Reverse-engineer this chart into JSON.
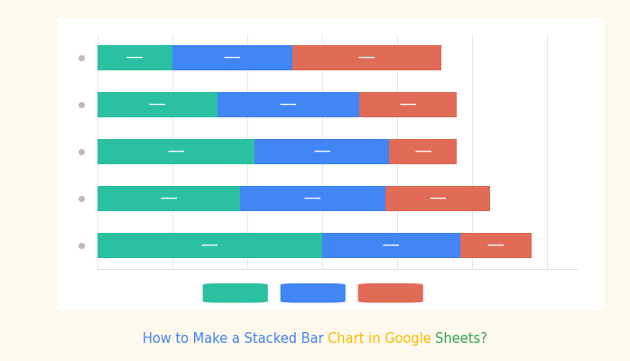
{
  "title_parts": [
    {
      "text": "How to Make a Stacked Bar ",
      "color": "#4285F4"
    },
    {
      "text": "Chart in Google ",
      "color": "#FBBC05"
    },
    {
      "text": "Sheets?",
      "color": "#34A853"
    }
  ],
  "series_colors": [
    "#2BC0A1",
    "#4285F4",
    "#E06B56"
  ],
  "rows": [
    [
      100,
      160,
      200
    ],
    [
      160,
      190,
      130
    ],
    [
      210,
      180,
      90
    ],
    [
      190,
      195,
      140
    ],
    [
      300,
      185,
      95
    ]
  ],
  "background_outer": "#FFF8EC",
  "background_inner": "#FFFFFF",
  "bar_height": 0.52,
  "xlim": [
    0,
    640
  ],
  "xticks": [
    0,
    100,
    200,
    300,
    400,
    500,
    600
  ]
}
